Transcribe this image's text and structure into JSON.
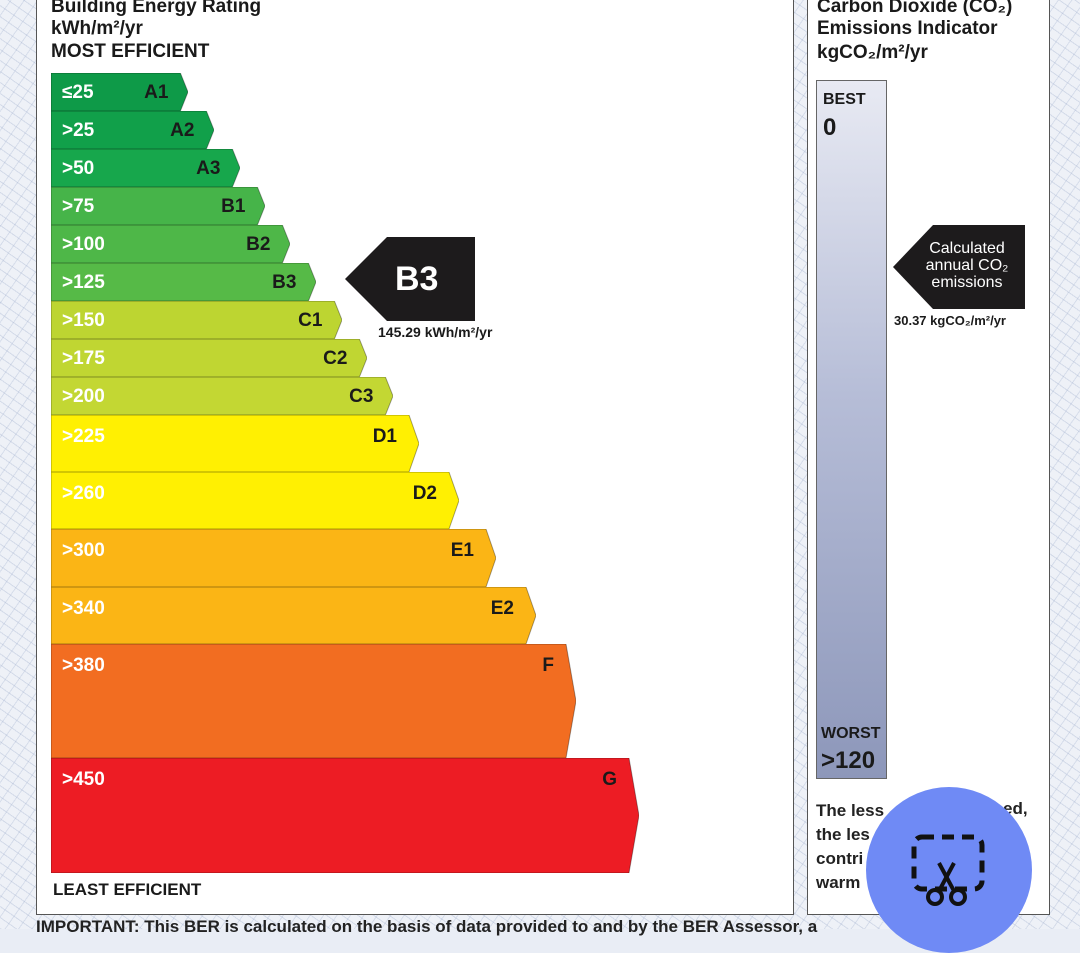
{
  "left": {
    "title": "Building Energy Rating",
    "unit": "kWh/m²/yr",
    "most_efficient": "MOST EFFICIENT",
    "least_efficient": "LEAST EFFICIENT",
    "bands": [
      {
        "range": "≤25",
        "cls": "A1",
        "color": "#0e9a48"
      },
      {
        "range": ">25",
        "cls": "A2",
        "color": "#11a04a"
      },
      {
        "range": ">50",
        "cls": "A3",
        "color": "#17a74c"
      },
      {
        "range": ">75",
        "cls": "B1",
        "color": "#46b449"
      },
      {
        "range": ">100",
        "cls": "B2",
        "color": "#4eb748"
      },
      {
        "range": ">125",
        "cls": "B3",
        "color": "#56ba47"
      },
      {
        "range": ">150",
        "cls": "C1",
        "color": "#bdd531"
      },
      {
        "range": ">175",
        "cls": "C2",
        "color": "#c0d632"
      },
      {
        "range": ">200",
        "cls": "C3",
        "color": "#c3d733"
      },
      {
        "range": ">225",
        "cls": "D1",
        "color": "#fff002"
      },
      {
        "range": ">260",
        "cls": "D2",
        "color": "#fff002"
      },
      {
        "range": ">300",
        "cls": "E1",
        "color": "#fbb515"
      },
      {
        "range": ">340",
        "cls": "E2",
        "color": "#fbb515"
      },
      {
        "range": ">380",
        "cls": "F",
        "color": "#f26d21"
      },
      {
        "range": ">450",
        "cls": "G",
        "color": "#ed1c24"
      }
    ],
    "rating": {
      "label": "B3",
      "value": "145.29 kWh/m²/yr"
    }
  },
  "right": {
    "title_line1": "Carbon Dioxide (CO₂)",
    "title_line2": "Emissions Indicator",
    "unit": "kgCO₂/m²/yr",
    "best_label": "BEST",
    "best_value": "0",
    "worst_label": "WORST",
    "worst_value": ">120",
    "pointer_line1": "Calculated",
    "pointer_line2": "annual CO₂",
    "pointer_line3": "emissions",
    "pointer_value": "30.37 kgCO₂/m²/yr",
    "footnote_lines": [
      "The less",
      "the les",
      "contri",
      "warm"
    ],
    "footnote_tail": "ed,"
  },
  "bottom_note": "IMPORTANT: This BER is calculated on the basis of data provided to and by the BER Assessor, a",
  "fab_icon": "scissors-crop-icon"
}
